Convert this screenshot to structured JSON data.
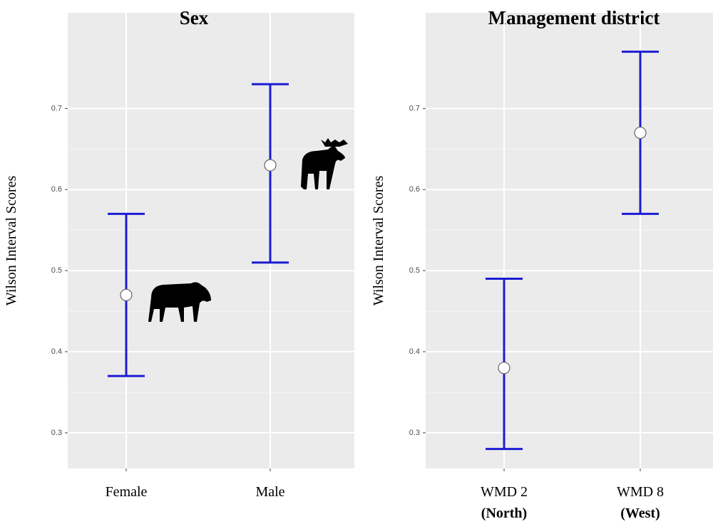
{
  "chart_data": [
    {
      "type": "errorbar",
      "title": "Sex",
      "y_label": "Wilson Interval Scores",
      "categories": [
        "Female",
        "Male"
      ],
      "values": [
        0.47,
        0.63
      ],
      "lower": [
        0.37,
        0.51
      ],
      "upper": [
        0.57,
        0.73
      ],
      "color": "#1c1cd4",
      "ylim": [
        0.256,
        0.818
      ],
      "yticks": [
        0.3,
        0.4,
        0.5,
        0.6,
        0.7
      ],
      "grid": true
    },
    {
      "type": "errorbar",
      "title": "Management district",
      "y_label": "Wilson Interval Scores",
      "categories": [
        "WMD 2",
        "WMD 8"
      ],
      "category_notes": [
        "(North)",
        "(West)"
      ],
      "values": [
        0.38,
        0.67
      ],
      "lower": [
        0.28,
        0.57
      ],
      "upper": [
        0.49,
        0.77
      ],
      "color": "#1c1cd4",
      "ylim": [
        0.256,
        0.818
      ],
      "yticks": [
        0.3,
        0.4,
        0.5,
        0.6,
        0.7
      ],
      "grid": true
    }
  ]
}
